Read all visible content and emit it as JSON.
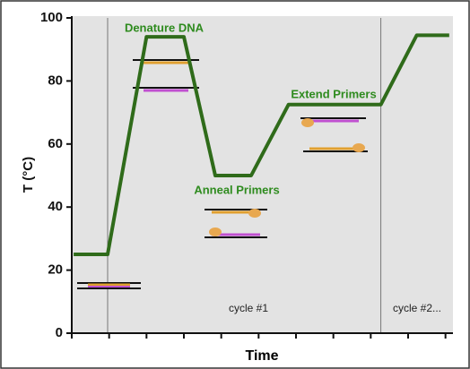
{
  "chart_data": {
    "type": "line",
    "x_label": "Time",
    "y_label": "T (°C)",
    "annotations": [
      "Denature DNA",
      "Anneal Primers",
      "Extend Primers",
      "cycle #1",
      "cycle #2..."
    ],
    "series": [
      {
        "color": "#2f6b1a",
        "x": [
          0.05,
          0.96,
          2.0,
          3.0,
          3.84,
          4.8,
          5.8,
          8.27,
          9.23,
          10.1
        ],
        "values": [
          25,
          25,
          94,
          94,
          50,
          50,
          72.5,
          72.5,
          94.5,
          94.5
        ]
      }
    ],
    "xlim": [
      0,
      10.2
    ],
    "xticks": [
      0,
      1,
      2,
      3,
      4,
      5,
      6,
      7,
      8,
      9,
      10
    ],
    "ylim": [
      0,
      100
    ],
    "yticks": [
      0,
      20,
      40,
      60,
      80,
      100
    ],
    "plot_background": "#e3e3e3"
  }
}
